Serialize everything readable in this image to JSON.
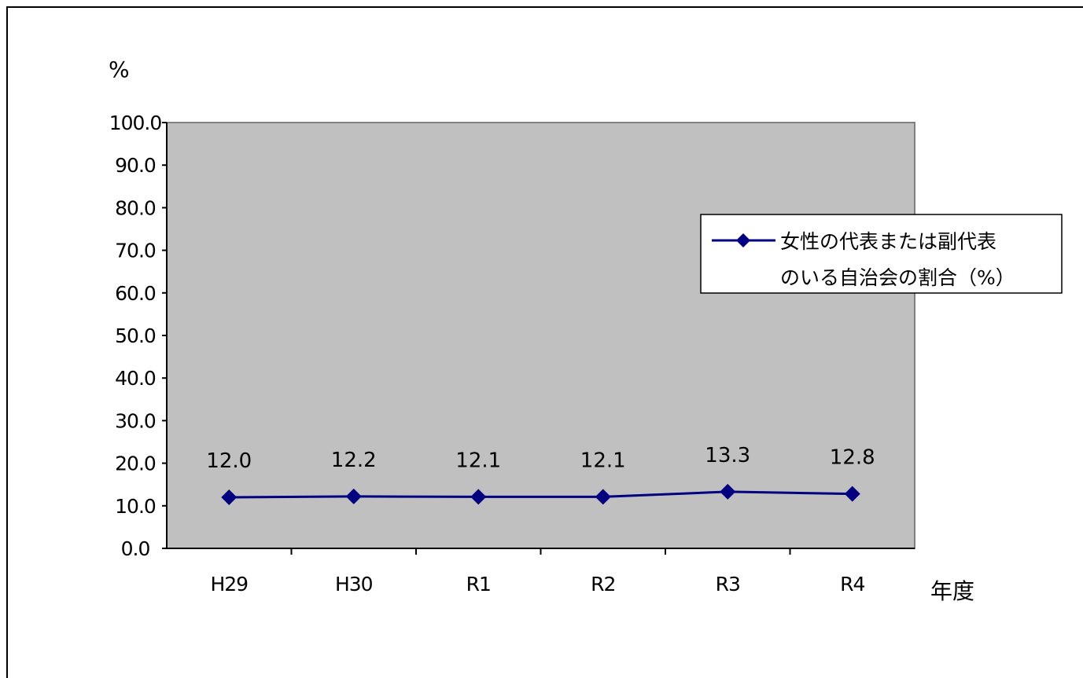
{
  "chart_data": {
    "type": "line",
    "title": "",
    "ylabel": "%",
    "xlabel": "年度",
    "ylim": [
      0,
      100
    ],
    "ytick_step": 10,
    "ytick_format": "0.0",
    "grid": false,
    "legend_position": "right",
    "categories": [
      "H29",
      "H30",
      "R1",
      "R2",
      "R3",
      "R4"
    ],
    "series": [
      {
        "name": "女性の代表または副代表のいる自治会の割合（%）",
        "name_lines": [
          "女性の代表または副代表",
          "のいる自治会の割合（%）"
        ],
        "values": [
          12.0,
          12.2,
          12.1,
          12.1,
          13.3,
          12.8
        ],
        "value_labels": [
          "12.0",
          "12.2",
          "12.1",
          "12.1",
          "13.3",
          "12.8"
        ],
        "color": "#000080",
        "marker": "diamond"
      }
    ],
    "plot_background": "#c0c0c0"
  }
}
